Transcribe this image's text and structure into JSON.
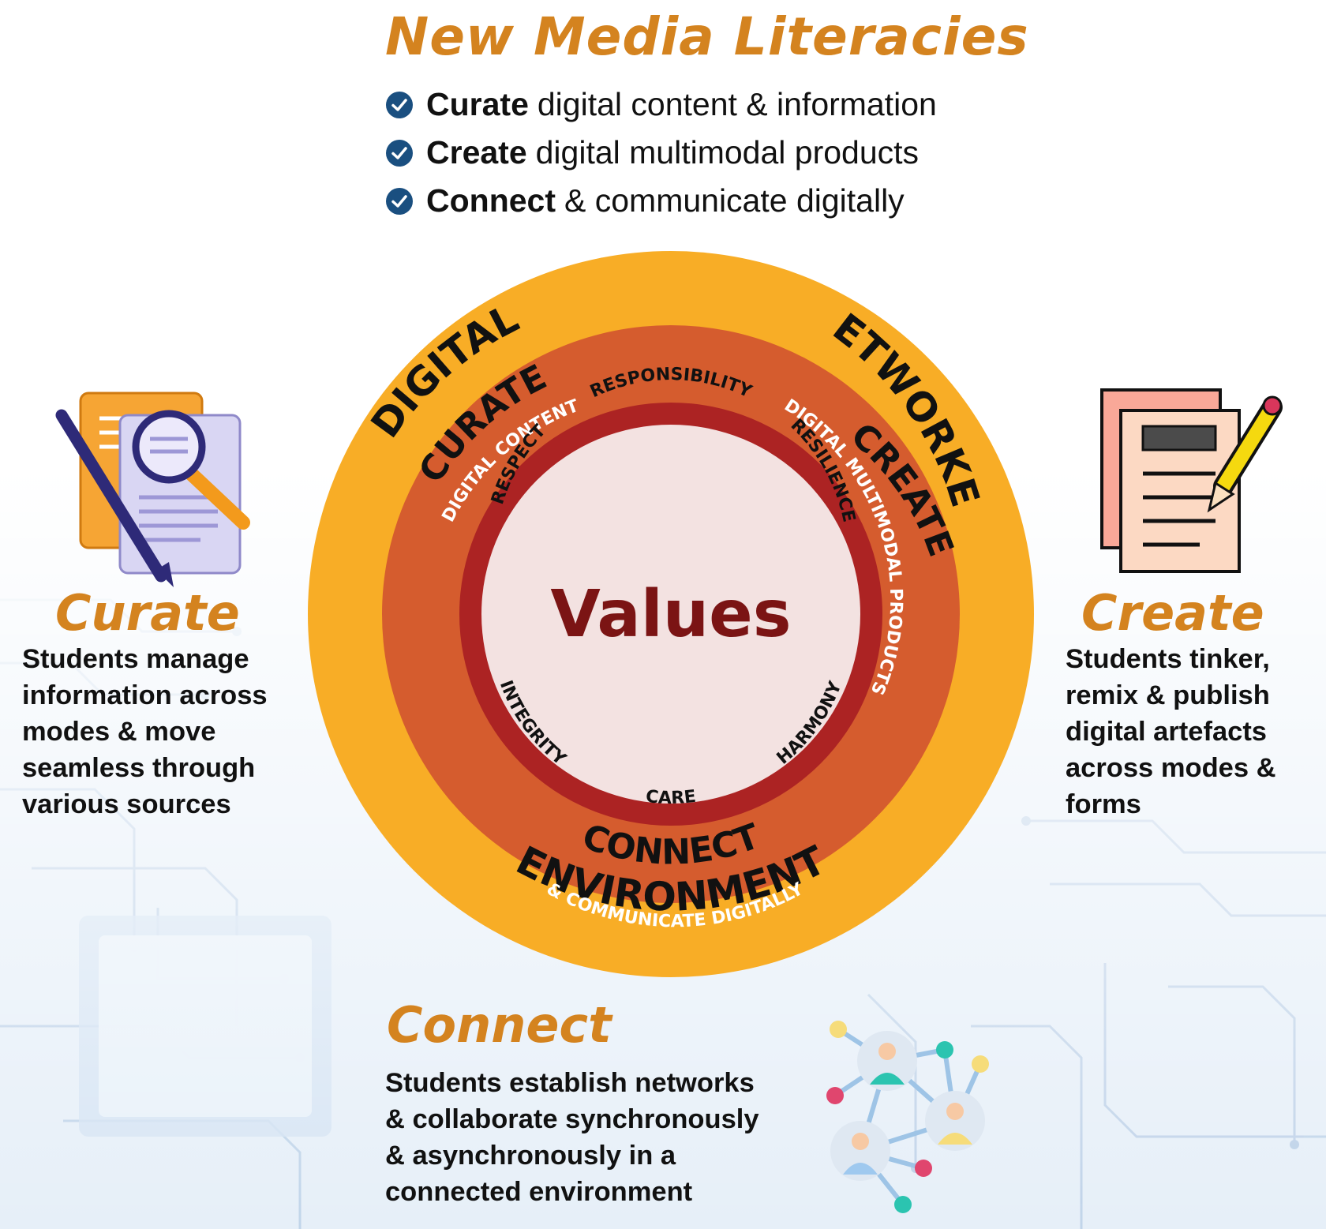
{
  "title": "New Media Literacies",
  "bullets": [
    {
      "bold": "Curate",
      "rest": "digital content & information"
    },
    {
      "bold": "Create",
      "rest": "digital multimodal products"
    },
    {
      "bold": "Connect",
      "rest": "& communicate digitally"
    }
  ],
  "diagram": {
    "outer_ring": {
      "top_left": "DIGITAL",
      "top_right": "NETWORKED",
      "bottom": "ENVIRONMENT"
    },
    "middle_ring": {
      "curate": "CURATE",
      "curate_sub": "DIGITAL CONTENT",
      "create": "CREATE",
      "create_sub": "DIGITAL MULTIMODAL PRODUCTS",
      "connect": "CONNECT",
      "connect_sub": "& COMMUNICATE DIGITALLY"
    },
    "inner_values": [
      "RESPECT",
      "RESPONSIBILITY",
      "RESILIENCE",
      "INTEGRITY",
      "CARE",
      "HARMONY"
    ],
    "center": "Values"
  },
  "curate": {
    "heading": "Curate",
    "text": "Students manage\ninformation across\nmodes & move\nseamless through\nvarious sources"
  },
  "create": {
    "heading": "Create",
    "text": "Students tinker,\nremix & publish\ndigital artefacts\nacross modes &\nforms"
  },
  "connect": {
    "heading": "Connect",
    "text": "Students establish networks\n& collaborate synchronously\n& asynchronously in a\nconnected environment"
  },
  "colors": {
    "title_orange": "#d4831f",
    "outer_ring": "#f8ad26",
    "middle_ring": "#d55c2e",
    "inner_ring": "#ac2323",
    "center_fill": "#f3e2e1",
    "values_text": "#7b1414",
    "check_blue": "#1a4f80"
  },
  "icons": [
    "checkmark-icon",
    "document-magnifier-pen-icon",
    "document-pencil-icon",
    "network-people-icon",
    "circuit-board-background"
  ]
}
